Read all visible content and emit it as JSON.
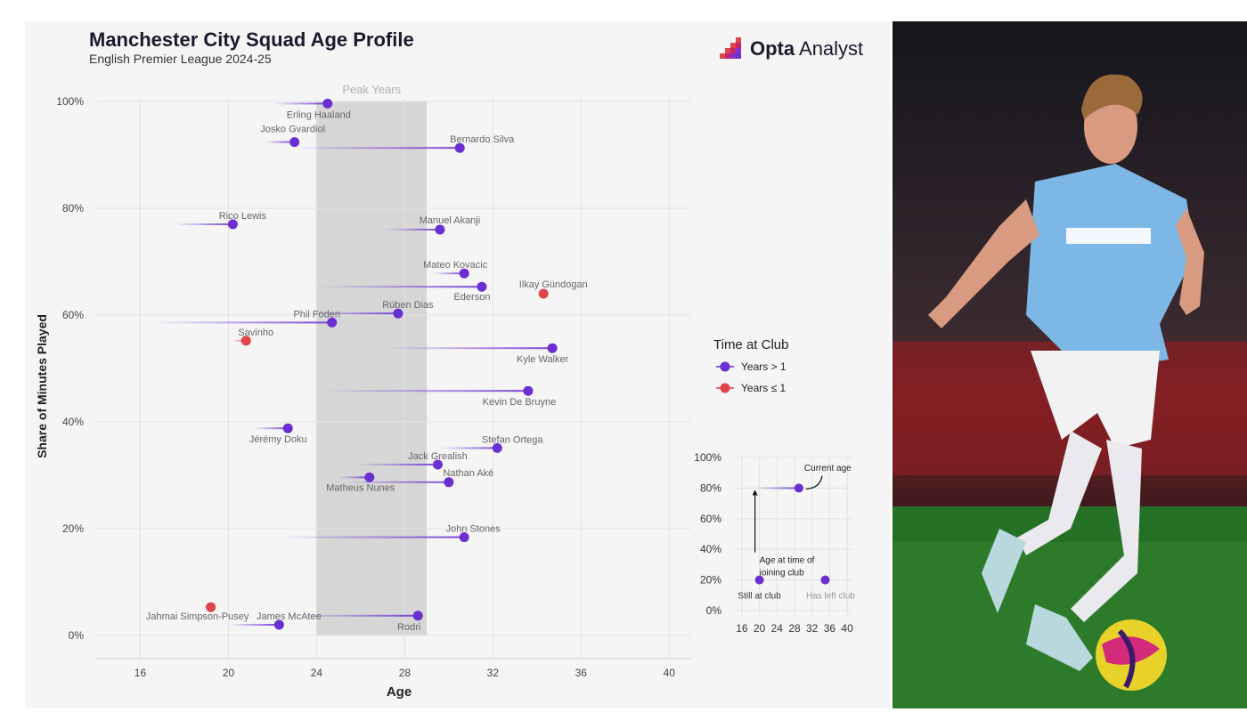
{
  "header": {
    "title": "Manchester City Squad Age Profile",
    "subtitle": "English Premier League 2024-25",
    "logo_bold": "Opta",
    "logo_regular": " Analyst"
  },
  "colors": {
    "over_one_year": "#6a2fd1",
    "one_year_or_less": "#e0434a",
    "peak_band": "#d6d6d6",
    "grid": "#e2e2e4"
  },
  "chart_data": {
    "type": "scatter",
    "xlabel": "Age",
    "ylabel": "Share of Minutes Played",
    "xlim": [
      14,
      41
    ],
    "ylim": [
      0,
      100
    ],
    "xticks": [
      16,
      20,
      24,
      28,
      32,
      36,
      40
    ],
    "xtick_labels": [
      "16",
      "20",
      "24",
      "28",
      "32",
      "36",
      "40"
    ],
    "yticks": [
      0,
      20,
      40,
      60,
      80,
      100
    ],
    "ytick_labels": [
      "0%",
      "20%",
      "40%",
      "60%",
      "80%",
      "100%"
    ],
    "peak_band": {
      "label": "Peak Years",
      "from": 24,
      "to": 29
    },
    "legend": {
      "title": "Time at Club",
      "placement": "right",
      "items": [
        {
          "label": "Years > 1",
          "category": "over_one_year"
        },
        {
          "label": "Years ≤ 1",
          "category": "one_year_or_less"
        }
      ]
    },
    "players": [
      {
        "name": "Erling Haaland",
        "age": 24.5,
        "joined": 22,
        "share": 99.6,
        "category": "over_one_year"
      },
      {
        "name": "Josko Gvardiol",
        "age": 23.0,
        "joined": 21.6,
        "share": 92.4,
        "category": "over_one_year"
      },
      {
        "name": "Bernardo Silva",
        "age": 30.5,
        "joined": 22.9,
        "share": 91.3,
        "category": "over_one_year"
      },
      {
        "name": "Rico Lewis",
        "age": 20.2,
        "joined": 17.6,
        "share": 77.0,
        "category": "over_one_year"
      },
      {
        "name": "Manuel Akanji",
        "age": 29.6,
        "joined": 27.1,
        "share": 76.0,
        "category": "over_one_year"
      },
      {
        "name": "Mateo Kovacic",
        "age": 30.7,
        "joined": 29.3,
        "share": 67.8,
        "category": "over_one_year"
      },
      {
        "name": "Ilkay Gündogan",
        "age": 34.3,
        "joined": 34.3,
        "share": 64.0,
        "category": "one_year_or_less"
      },
      {
        "name": "Ederson",
        "age": 31.5,
        "joined": 24.0,
        "share": 65.3,
        "category": "over_one_year"
      },
      {
        "name": "Rúben Dias",
        "age": 27.7,
        "joined": 23.4,
        "share": 60.3,
        "category": "over_one_year"
      },
      {
        "name": "Phil Foden",
        "age": 24.7,
        "joined": 16.5,
        "share": 58.6,
        "category": "over_one_year"
      },
      {
        "name": "Savinho",
        "age": 20.8,
        "joined": 20.2,
        "share": 55.2,
        "category": "one_year_or_less"
      },
      {
        "name": "Kyle Walker",
        "age": 34.7,
        "joined": 27.1,
        "share": 53.8,
        "category": "over_one_year"
      },
      {
        "name": "Kevin De Bruyne",
        "age": 33.6,
        "joined": 24.2,
        "share": 45.8,
        "category": "over_one_year"
      },
      {
        "name": "Jérémy Doku",
        "age": 22.7,
        "joined": 21.2,
        "share": 38.8,
        "category": "over_one_year"
      },
      {
        "name": "Stefan Ortega",
        "age": 32.2,
        "joined": 29.6,
        "share": 35.1,
        "category": "over_one_year"
      },
      {
        "name": "Jack Grealish",
        "age": 29.5,
        "joined": 25.8,
        "share": 32.0,
        "category": "over_one_year"
      },
      {
        "name": "Matheus Nunes",
        "age": 26.4,
        "joined": 25.0,
        "share": 29.6,
        "category": "over_one_year"
      },
      {
        "name": "Nathan Aké",
        "age": 30.0,
        "joined": 25.3,
        "share": 28.7,
        "category": "over_one_year"
      },
      {
        "name": "John Stones",
        "age": 30.7,
        "joined": 22.3,
        "share": 18.4,
        "category": "over_one_year"
      },
      {
        "name": "Jahmai Simpson-Pusey",
        "age": 19.2,
        "joined": 18.9,
        "share": 5.3,
        "category": "one_year_or_less"
      },
      {
        "name": "James McAtee",
        "age": 22.3,
        "joined": 20.0,
        "share": 2.0,
        "category": "over_one_year"
      },
      {
        "name": "Rodri",
        "age": 28.6,
        "joined": 23.2,
        "share": 3.7,
        "category": "over_one_year"
      }
    ]
  },
  "key_chart": {
    "xticks": [
      16,
      20,
      24,
      28,
      32,
      36,
      40
    ],
    "xtick_labels": [
      "16",
      "20",
      "24",
      "28",
      "32",
      "36",
      "40"
    ],
    "yticks": [
      0,
      20,
      40,
      60,
      80,
      100
    ],
    "ytick_labels": [
      "0%",
      "20%",
      "40%",
      "60%",
      "80%",
      "100%"
    ],
    "example": {
      "joined": 20,
      "age": 29,
      "share": 80
    },
    "still_at_club": {
      "age": 20,
      "share": 20
    },
    "has_left_club": {
      "age": 35,
      "share": 20
    },
    "labels": {
      "current_age": "Current age",
      "joining_age_line1": "Age at time of",
      "joining_age_line2": "joining club",
      "still_at_club": "Still at club",
      "has_left_club": "Has left club"
    }
  }
}
